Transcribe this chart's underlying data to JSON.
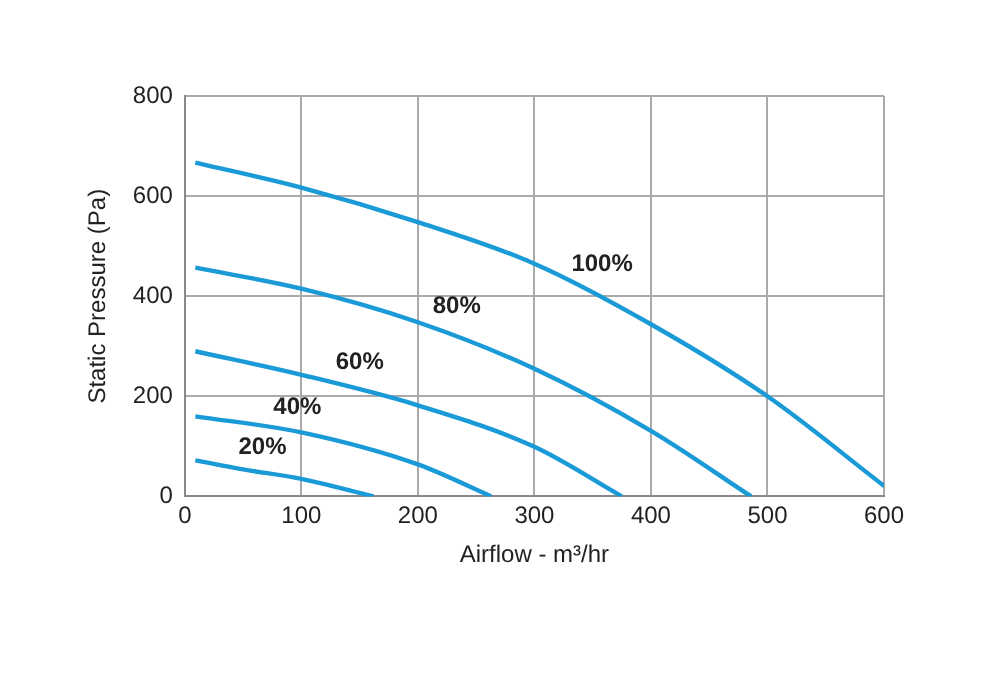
{
  "chart_data": {
    "type": "line",
    "xlabel": "Airflow - m³/hr",
    "ylabel": "Static Pressure (Pa)",
    "xlim": [
      0,
      600
    ],
    "xticks": [
      0,
      100,
      200,
      300,
      400,
      500,
      600
    ],
    "ylim": [
      0,
      800
    ],
    "yticks": [
      0,
      200,
      400,
      600,
      800
    ],
    "grid": true,
    "legend": false,
    "marker": "none",
    "line_style": "solid",
    "series": [
      {
        "name": "100%",
        "color": "#1a9ad6",
        "x": [
          9,
          100,
          200,
          300,
          400,
          500,
          600
        ],
        "values": [
          667,
          617,
          548,
          465,
          344,
          200,
          21
        ]
      },
      {
        "name": "80%",
        "color": "#1a9ad6",
        "x": [
          9,
          100,
          200,
          300,
          400,
          486
        ],
        "values": [
          457,
          415,
          348,
          255,
          131,
          0
        ]
      },
      {
        "name": "60%",
        "color": "#1a9ad6",
        "x": [
          9,
          100,
          200,
          300,
          375
        ],
        "values": [
          290,
          243,
          182,
          99,
          0
        ]
      },
      {
        "name": "40%",
        "color": "#1a9ad6",
        "x": [
          9,
          100,
          200,
          263
        ],
        "values": [
          160,
          128,
          64,
          0
        ]
      },
      {
        "name": "20%",
        "color": "#1a9ad6",
        "x": [
          9,
          50,
          100,
          162
        ],
        "values": [
          72,
          54,
          35,
          0
        ]
      }
    ]
  }
}
